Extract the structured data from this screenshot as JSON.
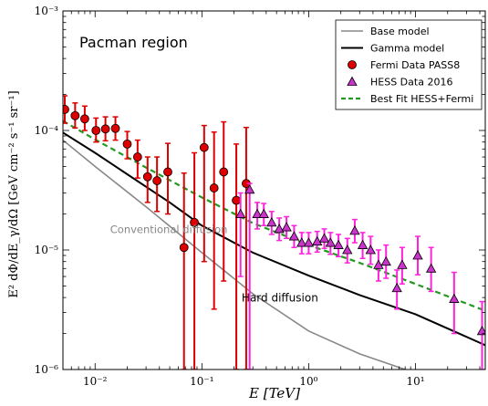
{
  "chart_data": {
    "type": "scatter",
    "title": "Pacman region",
    "xlabel": "E [TeV]",
    "ylabel": "E² dΦ/dE_γ/dΩ [GeV cm⁻² s⁻¹ sr⁻¹]",
    "x_scale": "log",
    "y_scale": "log",
    "xlim": [
      0.005,
      45
    ],
    "ylim": [
      1e-06,
      0.001
    ],
    "x_ticks": [
      {
        "value": 0.01,
        "label": "10⁻²"
      },
      {
        "value": 0.1,
        "label": "10⁻¹"
      },
      {
        "value": 1,
        "label": "10⁰"
      },
      {
        "value": 10,
        "label": "10¹"
      }
    ],
    "y_ticks": [
      {
        "value": 1e-06,
        "label": "10⁻⁶"
      },
      {
        "value": 1e-05,
        "label": "10⁻⁵"
      },
      {
        "value": 0.0001,
        "label": "10⁻⁴"
      },
      {
        "value": 0.001,
        "label": "10⁻³"
      }
    ],
    "grid": false,
    "legend_position": "top-right",
    "annotations": [
      {
        "text": "Conventional diffusion",
        "x": 0.037,
        "y": 1.38e-05,
        "color": "#888888"
      },
      {
        "text": "Hard diffusion",
        "x": 0.63,
        "y": 3.7e-06,
        "color": "#000000"
      }
    ],
    "series": [
      {
        "name": "Base model",
        "kind": "line",
        "color": "#888888",
        "x": [
          0.005,
          0.01,
          0.03,
          0.1,
          0.3,
          1,
          3,
          8
        ],
        "y": [
          8.3e-05,
          5e-05,
          2.3e-05,
          9.5e-06,
          4.3e-06,
          2.1e-06,
          1.35e-06,
          1e-06
        ]
      },
      {
        "name": "Gamma model",
        "kind": "line",
        "color": "#000000",
        "x": [
          0.005,
          0.01,
          0.02,
          0.05,
          0.1,
          0.3,
          1,
          3,
          10,
          45
        ],
        "y": [
          9.6e-05,
          6.5e-05,
          4.3e-05,
          2.5e-05,
          1.6e-05,
          9.5e-06,
          6.1e-06,
          4.2e-06,
          2.9e-06,
          1.6e-06
        ]
      },
      {
        "name": "Fermi Data PASS8",
        "kind": "points",
        "marker": "circle",
        "color": "#dd0000",
        "x": [
          0.0052,
          0.0065,
          0.008,
          0.0102,
          0.0125,
          0.0155,
          0.02,
          0.025,
          0.031,
          0.038,
          0.048,
          0.068,
          0.085,
          0.105,
          0.13,
          0.16,
          0.21,
          0.26
        ],
        "y": [
          0.00015,
          0.000133,
          0.000125,
          0.0001,
          0.000103,
          0.000104,
          7.7e-05,
          6e-05,
          4.1e-05,
          3.8e-05,
          4.5e-05,
          1.05e-05,
          1.7e-05,
          7.2e-05,
          3.3e-05,
          4.5e-05,
          2.6e-05,
          3.6e-05
        ],
        "yerr_low": [
          0.000115,
          0.000105,
          0.0001,
          8e-05,
          8.2e-05,
          8.3e-05,
          5.8e-05,
          4e-05,
          2.5e-05,
          2.1e-05,
          2e-05,
          1e-06,
          1e-06,
          8e-06,
          3.2e-06,
          5.5e-06,
          1e-06,
          1e-06
        ],
        "yerr_high": [
          0.000195,
          0.00017,
          0.00016,
          0.000127,
          0.00013,
          0.00013,
          9.8e-05,
          8.3e-05,
          6e-05,
          6e-05,
          7.8e-05,
          4.4e-05,
          6.5e-05,
          0.00011,
          9.7e-05,
          0.000118,
          7.7e-05,
          0.000106
        ]
      },
      {
        "name": "HESS Data 2016",
        "kind": "points",
        "marker": "triangle",
        "color": "#cc33cc",
        "x": [
          0.23,
          0.28,
          0.33,
          0.38,
          0.45,
          0.53,
          0.62,
          0.73,
          0.86,
          1.0,
          1.2,
          1.4,
          1.6,
          1.9,
          2.3,
          2.7,
          3.2,
          3.8,
          4.5,
          5.3,
          6.7,
          7.5,
          10.5,
          14,
          23,
          42
        ],
        "y": [
          2e-05,
          3.2e-05,
          2e-05,
          2e-05,
          1.7e-05,
          1.5e-05,
          1.55e-05,
          1.3e-05,
          1.15e-05,
          1.15e-05,
          1.18e-05,
          1.25e-05,
          1.15e-05,
          1.1e-05,
          1e-05,
          1.45e-05,
          1.1e-05,
          1e-05,
          7.5e-06,
          8e-06,
          4.8e-06,
          7.5e-06,
          9e-06,
          7e-06,
          3.9e-06,
          2.1e-06
        ],
        "yerr_low": [
          6e-06,
          1e-06,
          1.5e-05,
          1.6e-05,
          1.35e-05,
          1.2e-05,
          1.25e-05,
          1.05e-05,
          9.3e-06,
          9.3e-06,
          9.6e-06,
          1.03e-05,
          9.2e-06,
          8.8e-06,
          7.8e-06,
          1.15e-05,
          8.5e-06,
          7.6e-06,
          5.5e-06,
          5.8e-06,
          3.2e-06,
          5.2e-06,
          6.2e-06,
          4.5e-06,
          2e-06,
          1e-06
        ],
        "yerr_high": [
          3e-05,
          3.6e-05,
          2.5e-05,
          2.45e-05,
          2.1e-05,
          1.85e-05,
          1.9e-05,
          1.6e-05,
          1.4e-05,
          1.4e-05,
          1.43e-05,
          1.5e-05,
          1.4e-05,
          1.35e-05,
          1.25e-05,
          1.8e-05,
          1.4e-05,
          1.3e-05,
          1e-05,
          1.1e-05,
          6.8e-06,
          1.05e-05,
          1.3e-05,
          1.05e-05,
          6.5e-06,
          3.7e-06
        ]
      },
      {
        "name": "Best Fit HESS+Fermi",
        "kind": "dashed-line",
        "color": "#229922",
        "x": [
          0.005,
          0.01,
          0.03,
          0.1,
          0.3,
          1,
          3,
          10,
          45
        ],
        "y": [
          0.00012,
          8.4e-05,
          4.9e-05,
          2.75e-05,
          1.68e-05,
          1.1e-05,
          7.8e-06,
          5.2e-06,
          3.1e-06
        ]
      }
    ]
  }
}
